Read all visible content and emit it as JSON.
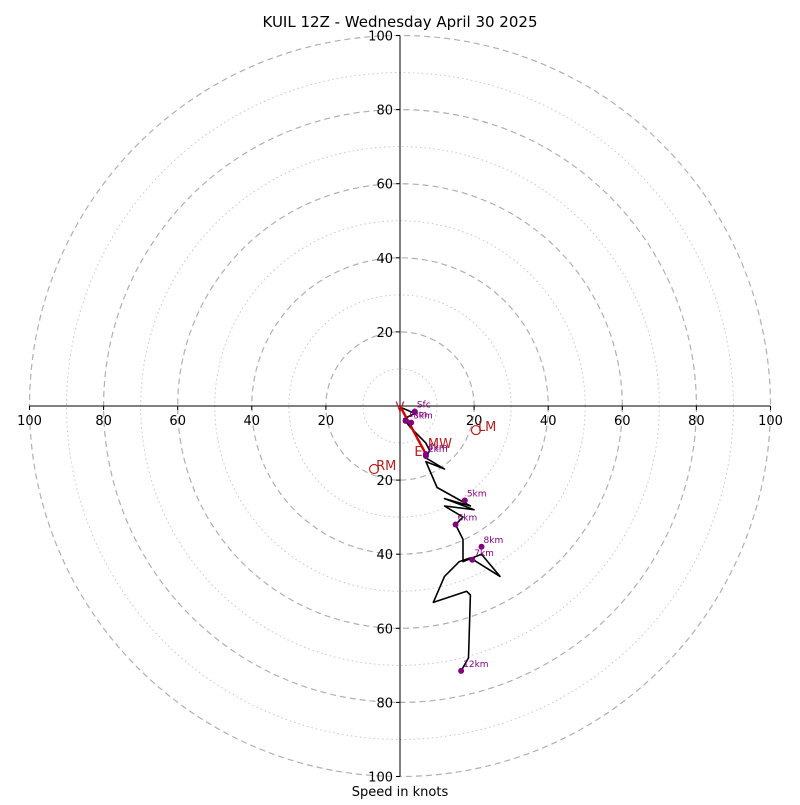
{
  "chart_data": {
    "type": "line",
    "title": "KUIL 12Z - Wednesday April 30 2025",
    "xlabel": "Speed in knots",
    "ylabel": "",
    "xlim": [
      -100,
      100
    ],
    "ylim": [
      -100,
      100
    ],
    "x_ticks": [
      -100,
      -80,
      -60,
      -40,
      -20,
      20,
      40,
      60,
      80,
      100
    ],
    "x_tick_labels": [
      "100",
      "80",
      "60",
      "40",
      "20",
      "20",
      "40",
      "60",
      "80",
      "100"
    ],
    "y_ticks": [
      100,
      80,
      60,
      40,
      20,
      -20,
      -40,
      -60,
      -80,
      -100
    ],
    "y_tick_labels": [
      "100",
      "80",
      "60",
      "40",
      "20",
      "20",
      "40",
      "60",
      "80",
      "100"
    ],
    "rings_major": [
      20,
      40,
      60,
      80,
      100
    ],
    "rings_minor": [
      10,
      30,
      50,
      70,
      90
    ],
    "grid": true,
    "colors": {
      "hodograph": "#000000",
      "height_markers": "#800080",
      "storm_motion": "#b22222",
      "shear_vector": "#cc0000",
      "major_ring": "#b0b0b0",
      "minor_ring": "#c8c8c8",
      "axis": "#000000"
    },
    "series": [
      {
        "values": [
          [
            0.5,
            -0.5
          ],
          [
            4,
            -2
          ],
          [
            1,
            -3.5
          ],
          [
            3,
            -6
          ],
          [
            5,
            -8
          ],
          [
            7,
            -10
          ],
          [
            8,
            -12
          ],
          [
            7,
            -14
          ],
          [
            12,
            -17
          ],
          [
            7,
            -15
          ],
          [
            10,
            -22
          ],
          [
            19,
            -27
          ],
          [
            12,
            -25
          ],
          [
            20,
            -28
          ],
          [
            12,
            -27
          ],
          [
            17,
            -30
          ],
          [
            15,
            -32
          ],
          [
            17,
            -36
          ],
          [
            17,
            -42
          ],
          [
            22,
            -40
          ],
          [
            27,
            -46
          ],
          [
            19,
            -41
          ],
          [
            16,
            -42
          ],
          [
            12,
            -46
          ],
          [
            9,
            -53
          ],
          [
            18,
            -50
          ],
          [
            19,
            -51
          ],
          [
            18.5,
            -68
          ],
          [
            16.5,
            -71.5
          ]
        ]
      }
    ],
    "height_markers": [
      {
        "label": "Sfc",
        "x": 4,
        "y": -1.5
      },
      {
        "label": "1km",
        "x": 1.5,
        "y": -4
      },
      {
        "label": "3km",
        "x": 3,
        "y": -4.5
      },
      {
        "label": "2km",
        "x": 7,
        "y": -13.5
      },
      {
        "label": "4km",
        "x": 7,
        "y": -13
      },
      {
        "label": "5km",
        "x": 17.5,
        "y": -25.5
      },
      {
        "label": "6km",
        "x": 15,
        "y": -32
      },
      {
        "label": "8km",
        "x": 22,
        "y": -38
      },
      {
        "label": "7km",
        "x": 19.5,
        "y": -41.5
      },
      {
        "label": "12km",
        "x": 16.5,
        "y": -71.5
      }
    ],
    "storm_motion": [
      {
        "label": "RM",
        "x": -7,
        "y": -17
      },
      {
        "label": "LM",
        "x": 20.5,
        "y": -6.5
      },
      {
        "label": "MW",
        "x": 7,
        "y": -11
      }
    ],
    "shear_vector": {
      "from": [
        0,
        0
      ],
      "to": [
        7,
        -13
      ]
    },
    "shear_labels": [
      {
        "label": "V",
        "x": 0,
        "y": -1.5
      },
      {
        "label": "E",
        "x": 5,
        "y": -13.5
      }
    ]
  }
}
